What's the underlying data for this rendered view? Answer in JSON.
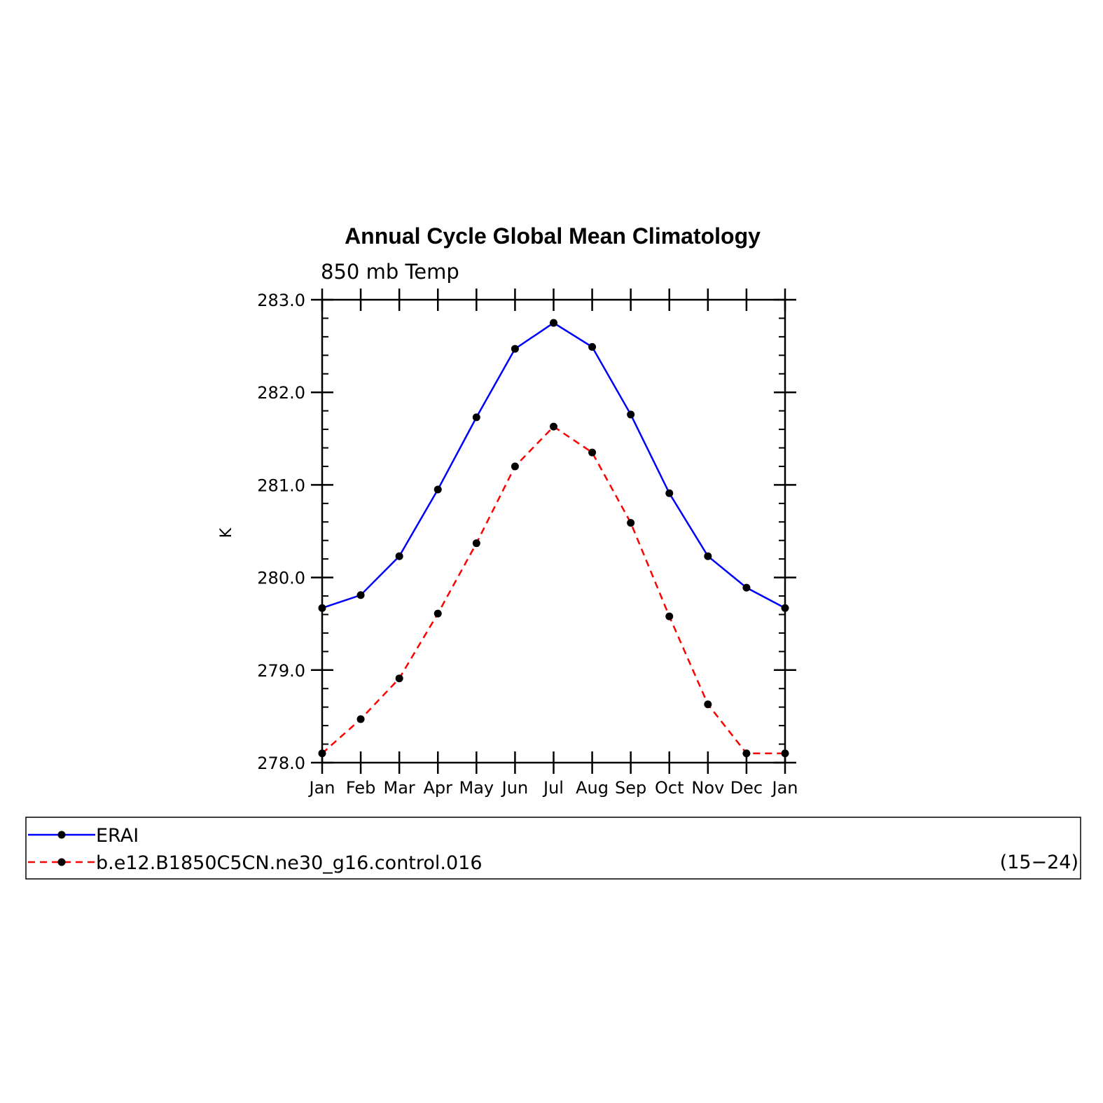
{
  "chart_data": {
    "type": "line",
    "title": "Annual Cycle Global Mean Climatology",
    "subtitle": "850 mb Temp",
    "xlabel": "",
    "ylabel": "K",
    "categories": [
      "Jan",
      "Feb",
      "Mar",
      "Apr",
      "May",
      "Jun",
      "Jul",
      "Aug",
      "Sep",
      "Oct",
      "Nov",
      "Dec",
      "Jan"
    ],
    "ylim": [
      278.0,
      283.0
    ],
    "yticks": [
      "278.0",
      "279.0",
      "280.0",
      "281.0",
      "282.0",
      "283.0"
    ],
    "grid": false,
    "legend_placement": "bottom",
    "series": [
      {
        "name": "ERAI",
        "color": "#0000ff",
        "dash": "solid",
        "values": [
          279.67,
          279.81,
          280.23,
          280.95,
          281.73,
          282.47,
          282.75,
          282.49,
          281.76,
          280.91,
          280.23,
          279.89,
          279.67
        ]
      },
      {
        "name": "b.e12.B1850C5CN.ne30_g16.control.016",
        "color": "#ff0000",
        "dash": "dashed",
        "values": [
          278.1,
          278.47,
          278.91,
          279.61,
          280.37,
          281.2,
          281.63,
          281.35,
          280.59,
          279.58,
          278.63,
          278.1,
          278.1
        ]
      }
    ],
    "annotation": "(15−24)"
  }
}
